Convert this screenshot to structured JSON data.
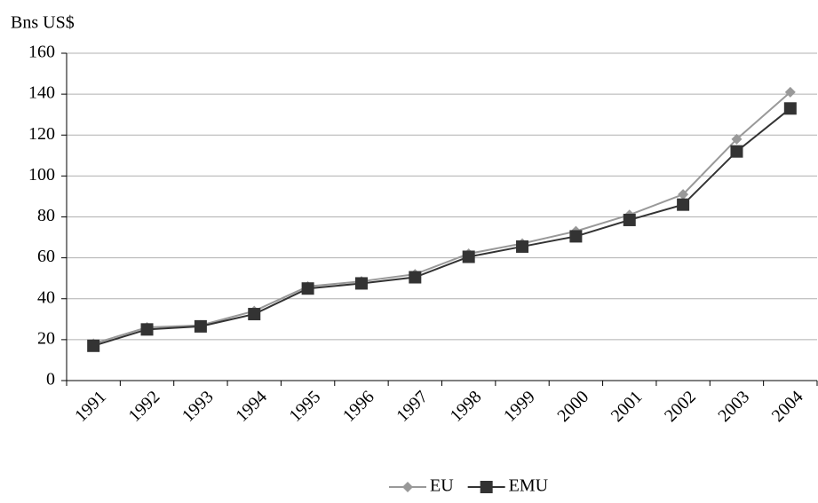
{
  "chart_data": {
    "type": "line",
    "y_label": "Bns US$",
    "categories": [
      "1991",
      "1992",
      "1993",
      "1994",
      "1995",
      "1996",
      "1997",
      "1998",
      "1999",
      "2000",
      "2001",
      "2002",
      "2003",
      "2004"
    ],
    "series": [
      {
        "name": "EU",
        "color": "#999999",
        "marker": "diamond",
        "values": [
          18,
          26,
          27,
          34,
          46,
          48.5,
          52,
          62,
          67,
          73,
          81,
          91,
          118,
          141
        ]
      },
      {
        "name": "EMU",
        "color": "#333333",
        "marker": "square",
        "values": [
          17,
          25,
          26.5,
          32.5,
          45,
          47.5,
          50.5,
          60.5,
          65.5,
          70.5,
          78.5,
          86,
          112,
          133
        ]
      }
    ],
    "ylim": [
      0,
      160
    ],
    "yticks": [
      0,
      20,
      40,
      60,
      80,
      100,
      120,
      140,
      160
    ],
    "grid": true,
    "legend": "bottom"
  }
}
